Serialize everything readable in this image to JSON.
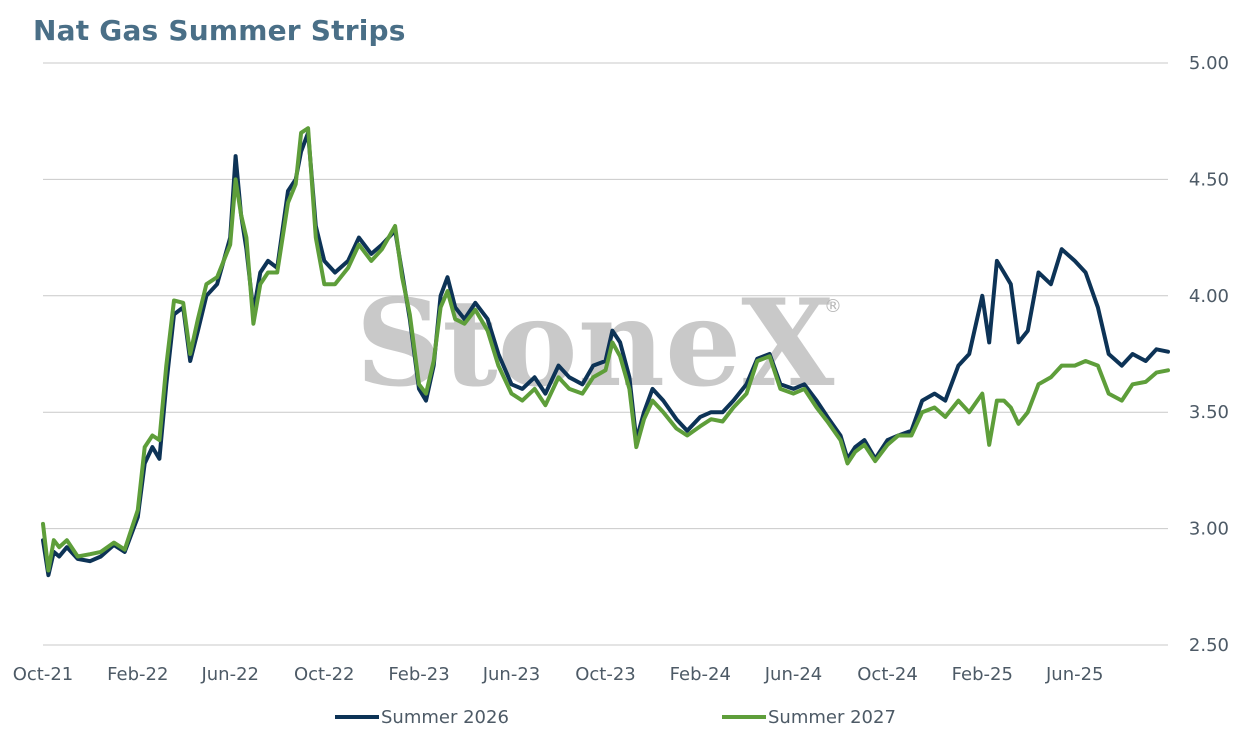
{
  "title": "Nat Gas Summer Strips",
  "watermark": "StoneX",
  "watermark_mark": "®",
  "chart_data": {
    "type": "line",
    "title": "Nat Gas Summer Strips",
    "xlabel": "",
    "ylabel": "",
    "x_range": [
      "2021-10-01",
      "2025-09-30"
    ],
    "x_ticks": [
      "Oct-21",
      "Feb-22",
      "Jun-22",
      "Oct-22",
      "Feb-23",
      "Jun-23",
      "Oct-23",
      "Feb-24",
      "Jun-24",
      "Oct-24",
      "Feb-25",
      "Jun-25"
    ],
    "y_ticks": [
      "2.50",
      "3.00",
      "3.50",
      "4.00",
      "4.50",
      "5.00"
    ],
    "ylim": [
      2.5,
      5.0
    ],
    "y_axis_position": "right",
    "grid": "horizontal",
    "legend_position": "bottom",
    "series": [
      {
        "name": "Summer 2026",
        "color": "#0d3356",
        "points": [
          [
            "2021-10-01",
            2.95
          ],
          [
            "2021-10-08",
            2.8
          ],
          [
            "2021-10-15",
            2.9
          ],
          [
            "2021-10-22",
            2.88
          ],
          [
            "2021-11-01",
            2.92
          ],
          [
            "2021-11-15",
            2.87
          ],
          [
            "2021-12-01",
            2.86
          ],
          [
            "2021-12-15",
            2.88
          ],
          [
            "2022-01-01",
            2.93
          ],
          [
            "2022-01-15",
            2.9
          ],
          [
            "2022-02-01",
            3.05
          ],
          [
            "2022-02-10",
            3.28
          ],
          [
            "2022-02-20",
            3.35
          ],
          [
            "2022-03-01",
            3.3
          ],
          [
            "2022-03-10",
            3.62
          ],
          [
            "2022-03-20",
            3.92
          ],
          [
            "2022-04-01",
            3.95
          ],
          [
            "2022-04-10",
            3.72
          ],
          [
            "2022-04-20",
            3.85
          ],
          [
            "2022-05-01",
            4.0
          ],
          [
            "2022-05-15",
            4.05
          ],
          [
            "2022-06-01",
            4.25
          ],
          [
            "2022-06-08",
            4.6
          ],
          [
            "2022-06-15",
            4.35
          ],
          [
            "2022-06-22",
            4.2
          ],
          [
            "2022-07-01",
            3.93
          ],
          [
            "2022-07-10",
            4.1
          ],
          [
            "2022-07-20",
            4.15
          ],
          [
            "2022-08-01",
            4.12
          ],
          [
            "2022-08-15",
            4.45
          ],
          [
            "2022-08-25",
            4.5
          ],
          [
            "2022-09-01",
            4.62
          ],
          [
            "2022-09-10",
            4.7
          ],
          [
            "2022-09-20",
            4.3
          ],
          [
            "2022-10-01",
            4.15
          ],
          [
            "2022-10-15",
            4.1
          ],
          [
            "2022-11-01",
            4.15
          ],
          [
            "2022-11-15",
            4.25
          ],
          [
            "2022-12-01",
            4.18
          ],
          [
            "2022-12-15",
            4.22
          ],
          [
            "2023-01-01",
            4.28
          ],
          [
            "2023-01-10",
            4.1
          ],
          [
            "2023-01-20",
            3.9
          ],
          [
            "2023-02-01",
            3.6
          ],
          [
            "2023-02-10",
            3.55
          ],
          [
            "2023-02-20",
            3.7
          ],
          [
            "2023-03-01",
            4.0
          ],
          [
            "2023-03-10",
            4.08
          ],
          [
            "2023-03-20",
            3.95
          ],
          [
            "2023-04-01",
            3.9
          ],
          [
            "2023-04-15",
            3.97
          ],
          [
            "2023-05-01",
            3.9
          ],
          [
            "2023-05-15",
            3.75
          ],
          [
            "2023-06-01",
            3.62
          ],
          [
            "2023-06-15",
            3.6
          ],
          [
            "2023-07-01",
            3.65
          ],
          [
            "2023-07-15",
            3.58
          ],
          [
            "2023-08-01",
            3.7
          ],
          [
            "2023-08-15",
            3.65
          ],
          [
            "2023-09-01",
            3.62
          ],
          [
            "2023-09-15",
            3.7
          ],
          [
            "2023-10-01",
            3.72
          ],
          [
            "2023-10-10",
            3.85
          ],
          [
            "2023-10-20",
            3.8
          ],
          [
            "2023-11-01",
            3.65
          ],
          [
            "2023-11-10",
            3.38
          ],
          [
            "2023-11-20",
            3.5
          ],
          [
            "2023-12-01",
            3.6
          ],
          [
            "2023-12-15",
            3.55
          ],
          [
            "2024-01-01",
            3.47
          ],
          [
            "2024-01-15",
            3.42
          ],
          [
            "2024-02-01",
            3.48
          ],
          [
            "2024-02-15",
            3.5
          ],
          [
            "2024-03-01",
            3.5
          ],
          [
            "2024-03-15",
            3.55
          ],
          [
            "2024-04-01",
            3.62
          ],
          [
            "2024-04-15",
            3.73
          ],
          [
            "2024-05-01",
            3.75
          ],
          [
            "2024-05-15",
            3.62
          ],
          [
            "2024-06-01",
            3.6
          ],
          [
            "2024-06-15",
            3.62
          ],
          [
            "2024-07-01",
            3.55
          ],
          [
            "2024-07-15",
            3.48
          ],
          [
            "2024-08-01",
            3.4
          ],
          [
            "2024-08-10",
            3.3
          ],
          [
            "2024-08-20",
            3.35
          ],
          [
            "2024-09-01",
            3.38
          ],
          [
            "2024-09-15",
            3.3
          ],
          [
            "2024-10-01",
            3.38
          ],
          [
            "2024-10-15",
            3.4
          ],
          [
            "2024-11-01",
            3.42
          ],
          [
            "2024-11-15",
            3.55
          ],
          [
            "2024-12-01",
            3.58
          ],
          [
            "2024-12-15",
            3.55
          ],
          [
            "2025-01-01",
            3.7
          ],
          [
            "2025-01-15",
            3.75
          ],
          [
            "2025-02-01",
            4.0
          ],
          [
            "2025-02-10",
            3.8
          ],
          [
            "2025-02-20",
            4.15
          ],
          [
            "2025-03-01",
            4.1
          ],
          [
            "2025-03-10",
            4.05
          ],
          [
            "2025-03-20",
            3.8
          ],
          [
            "2025-04-01",
            3.85
          ],
          [
            "2025-04-15",
            4.1
          ],
          [
            "2025-05-01",
            4.05
          ],
          [
            "2025-05-15",
            4.2
          ],
          [
            "2025-06-01",
            4.15
          ],
          [
            "2025-06-15",
            4.1
          ],
          [
            "2025-07-01",
            3.95
          ],
          [
            "2025-07-15",
            3.75
          ],
          [
            "2025-08-01",
            3.7
          ],
          [
            "2025-08-15",
            3.75
          ],
          [
            "2025-09-01",
            3.72
          ],
          [
            "2025-09-15",
            3.77
          ],
          [
            "2025-09-30",
            3.76
          ]
        ]
      },
      {
        "name": "Summer 2027",
        "color": "#5e9e3a",
        "points": [
          [
            "2021-10-01",
            3.02
          ],
          [
            "2021-10-08",
            2.82
          ],
          [
            "2021-10-15",
            2.95
          ],
          [
            "2021-10-22",
            2.92
          ],
          [
            "2021-11-01",
            2.95
          ],
          [
            "2021-11-15",
            2.88
          ],
          [
            "2021-12-01",
            2.89
          ],
          [
            "2021-12-15",
            2.9
          ],
          [
            "2022-01-01",
            2.94
          ],
          [
            "2022-01-15",
            2.91
          ],
          [
            "2022-02-01",
            3.08
          ],
          [
            "2022-02-10",
            3.35
          ],
          [
            "2022-02-20",
            3.4
          ],
          [
            "2022-03-01",
            3.38
          ],
          [
            "2022-03-10",
            3.7
          ],
          [
            "2022-03-20",
            3.98
          ],
          [
            "2022-04-01",
            3.97
          ],
          [
            "2022-04-10",
            3.75
          ],
          [
            "2022-04-20",
            3.9
          ],
          [
            "2022-05-01",
            4.05
          ],
          [
            "2022-05-15",
            4.08
          ],
          [
            "2022-06-01",
            4.22
          ],
          [
            "2022-06-08",
            4.5
          ],
          [
            "2022-06-15",
            4.35
          ],
          [
            "2022-06-22",
            4.25
          ],
          [
            "2022-07-01",
            3.88
          ],
          [
            "2022-07-10",
            4.05
          ],
          [
            "2022-07-20",
            4.1
          ],
          [
            "2022-08-01",
            4.1
          ],
          [
            "2022-08-15",
            4.4
          ],
          [
            "2022-08-25",
            4.48
          ],
          [
            "2022-09-01",
            4.7
          ],
          [
            "2022-09-10",
            4.72
          ],
          [
            "2022-09-20",
            4.25
          ],
          [
            "2022-10-01",
            4.05
          ],
          [
            "2022-10-15",
            4.05
          ],
          [
            "2022-11-01",
            4.12
          ],
          [
            "2022-11-15",
            4.22
          ],
          [
            "2022-12-01",
            4.15
          ],
          [
            "2022-12-15",
            4.2
          ],
          [
            "2023-01-01",
            4.3
          ],
          [
            "2023-01-10",
            4.08
          ],
          [
            "2023-01-20",
            3.92
          ],
          [
            "2023-02-01",
            3.62
          ],
          [
            "2023-02-10",
            3.58
          ],
          [
            "2023-02-20",
            3.72
          ],
          [
            "2023-03-01",
            3.95
          ],
          [
            "2023-03-10",
            4.02
          ],
          [
            "2023-03-20",
            3.9
          ],
          [
            "2023-04-01",
            3.88
          ],
          [
            "2023-04-15",
            3.94
          ],
          [
            "2023-05-01",
            3.85
          ],
          [
            "2023-05-15",
            3.7
          ],
          [
            "2023-06-01",
            3.58
          ],
          [
            "2023-06-15",
            3.55
          ],
          [
            "2023-07-01",
            3.6
          ],
          [
            "2023-07-15",
            3.53
          ],
          [
            "2023-08-01",
            3.65
          ],
          [
            "2023-08-15",
            3.6
          ],
          [
            "2023-09-01",
            3.58
          ],
          [
            "2023-09-15",
            3.65
          ],
          [
            "2023-10-01",
            3.68
          ],
          [
            "2023-10-10",
            3.8
          ],
          [
            "2023-10-20",
            3.74
          ],
          [
            "2023-11-01",
            3.6
          ],
          [
            "2023-11-10",
            3.35
          ],
          [
            "2023-11-20",
            3.47
          ],
          [
            "2023-12-01",
            3.55
          ],
          [
            "2023-12-15",
            3.5
          ],
          [
            "2024-01-01",
            3.43
          ],
          [
            "2024-01-15",
            3.4
          ],
          [
            "2024-02-01",
            3.44
          ],
          [
            "2024-02-15",
            3.47
          ],
          [
            "2024-03-01",
            3.46
          ],
          [
            "2024-03-15",
            3.52
          ],
          [
            "2024-04-01",
            3.58
          ],
          [
            "2024-04-15",
            3.72
          ],
          [
            "2024-05-01",
            3.74
          ],
          [
            "2024-05-15",
            3.6
          ],
          [
            "2024-06-01",
            3.58
          ],
          [
            "2024-06-15",
            3.6
          ],
          [
            "2024-07-01",
            3.52
          ],
          [
            "2024-07-15",
            3.46
          ],
          [
            "2024-08-01",
            3.38
          ],
          [
            "2024-08-10",
            3.28
          ],
          [
            "2024-08-20",
            3.33
          ],
          [
            "2024-09-01",
            3.36
          ],
          [
            "2024-09-15",
            3.29
          ],
          [
            "2024-10-01",
            3.36
          ],
          [
            "2024-10-15",
            3.4
          ],
          [
            "2024-11-01",
            3.4
          ],
          [
            "2024-11-15",
            3.5
          ],
          [
            "2024-12-01",
            3.52
          ],
          [
            "2024-12-15",
            3.48
          ],
          [
            "2025-01-01",
            3.55
          ],
          [
            "2025-01-15",
            3.5
          ],
          [
            "2025-02-01",
            3.58
          ],
          [
            "2025-02-10",
            3.36
          ],
          [
            "2025-02-20",
            3.55
          ],
          [
            "2025-03-01",
            3.55
          ],
          [
            "2025-03-10",
            3.52
          ],
          [
            "2025-03-20",
            3.45
          ],
          [
            "2025-04-01",
            3.5
          ],
          [
            "2025-04-15",
            3.62
          ],
          [
            "2025-05-01",
            3.65
          ],
          [
            "2025-05-15",
            3.7
          ],
          [
            "2025-06-01",
            3.7
          ],
          [
            "2025-06-15",
            3.72
          ],
          [
            "2025-07-01",
            3.7
          ],
          [
            "2025-07-15",
            3.58
          ],
          [
            "2025-08-01",
            3.55
          ],
          [
            "2025-08-15",
            3.62
          ],
          [
            "2025-09-01",
            3.63
          ],
          [
            "2025-09-15",
            3.67
          ],
          [
            "2025-09-30",
            3.68
          ]
        ]
      }
    ]
  }
}
